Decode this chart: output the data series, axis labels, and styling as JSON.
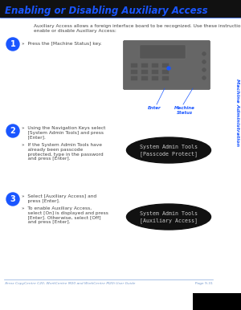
{
  "title": "Enabling or Disabling Auxiliary Access",
  "title_color": "#1a56ff",
  "sidebar_text": "Machine Administration",
  "sidebar_color": "#1a56ff",
  "bg_color": "#ffffff",
  "intro_text": "Auxiliary Access allows a foreign interface board to be recognized. Use these instructions to\nenable or disable Auxiliary Access:",
  "intro_color": "#444444",
  "step1_bullet1": "»  Press the [Machine Status] key.",
  "step2_bullet1": "»  Using the Navigation Keys select\n    [System Admin Tools] and press\n    [Enter].",
  "step2_bullet2": "»  If the System Admin Tools have\n    already been passcode\n    protected, type in the password\n    and press [Enter].",
  "step3_bullet1": "»  Select [Auxiliary Access] and\n    press [Enter].",
  "step3_bullet2": "»  To enable Auxiliary Access,\n    select [On] is displayed and press\n    [Enter]. Otherwise, select [Off]\n    and press [Enter].",
  "text_color": "#444444",
  "screen2_line1": "System Admin Tools",
  "screen2_line2": "[Passcode Protect]",
  "screen3_line1": "System Admin Tools",
  "screen3_line2": "[Auxiliary Access]",
  "screen_text_color": "#cccccc",
  "screen_bg_color": "#111111",
  "enter_label": "Enter",
  "machine_status_label": "Machine\nStatus",
  "callout_color": "#1a56ff",
  "footer_left": "Xerox CopyCentre C20, WorkCentre M20 and WorkCentre M20i User Guide",
  "footer_right": "Page 9-31",
  "footer_color": "#7799cc",
  "footer_line_color": "#88aadd",
  "step_circle_color": "#1a56ff",
  "step_num_color": "#ffffff",
  "panel_color": "#666666",
  "panel_screen_color": "#888888",
  "panel_edge_color": "#444444"
}
